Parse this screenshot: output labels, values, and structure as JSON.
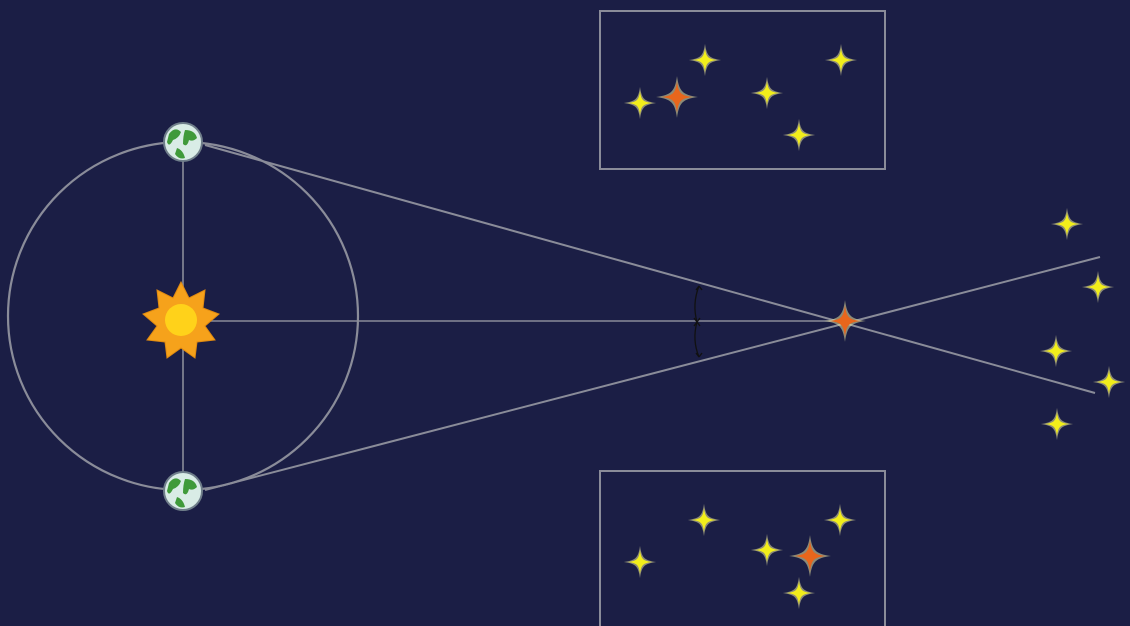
{
  "background_color": "#1b1e45",
  "line_color": "#8a8c99",
  "sun": {
    "icon": "sun-icon",
    "color": "#f6a21b",
    "core_color": "#ffd21a"
  },
  "earth": {
    "icon": "earth-globe-icon",
    "ocean_color": "#d9ece6",
    "land_color": "#3f9a3a",
    "positions": [
      "top",
      "bottom"
    ]
  },
  "near_star": {
    "icon": "star-icon",
    "color": "#e8661c"
  },
  "distant_star": {
    "icon": "star-icon",
    "color": "#f2ee1b"
  },
  "insets": [
    {
      "name": "view-from-top-earth-position",
      "star_count": 6
    },
    {
      "name": "view-from-bottom-earth-position",
      "star_count": 6
    }
  ],
  "parallax_angle_marker": {
    "icon": "angle-arrow-icon"
  }
}
